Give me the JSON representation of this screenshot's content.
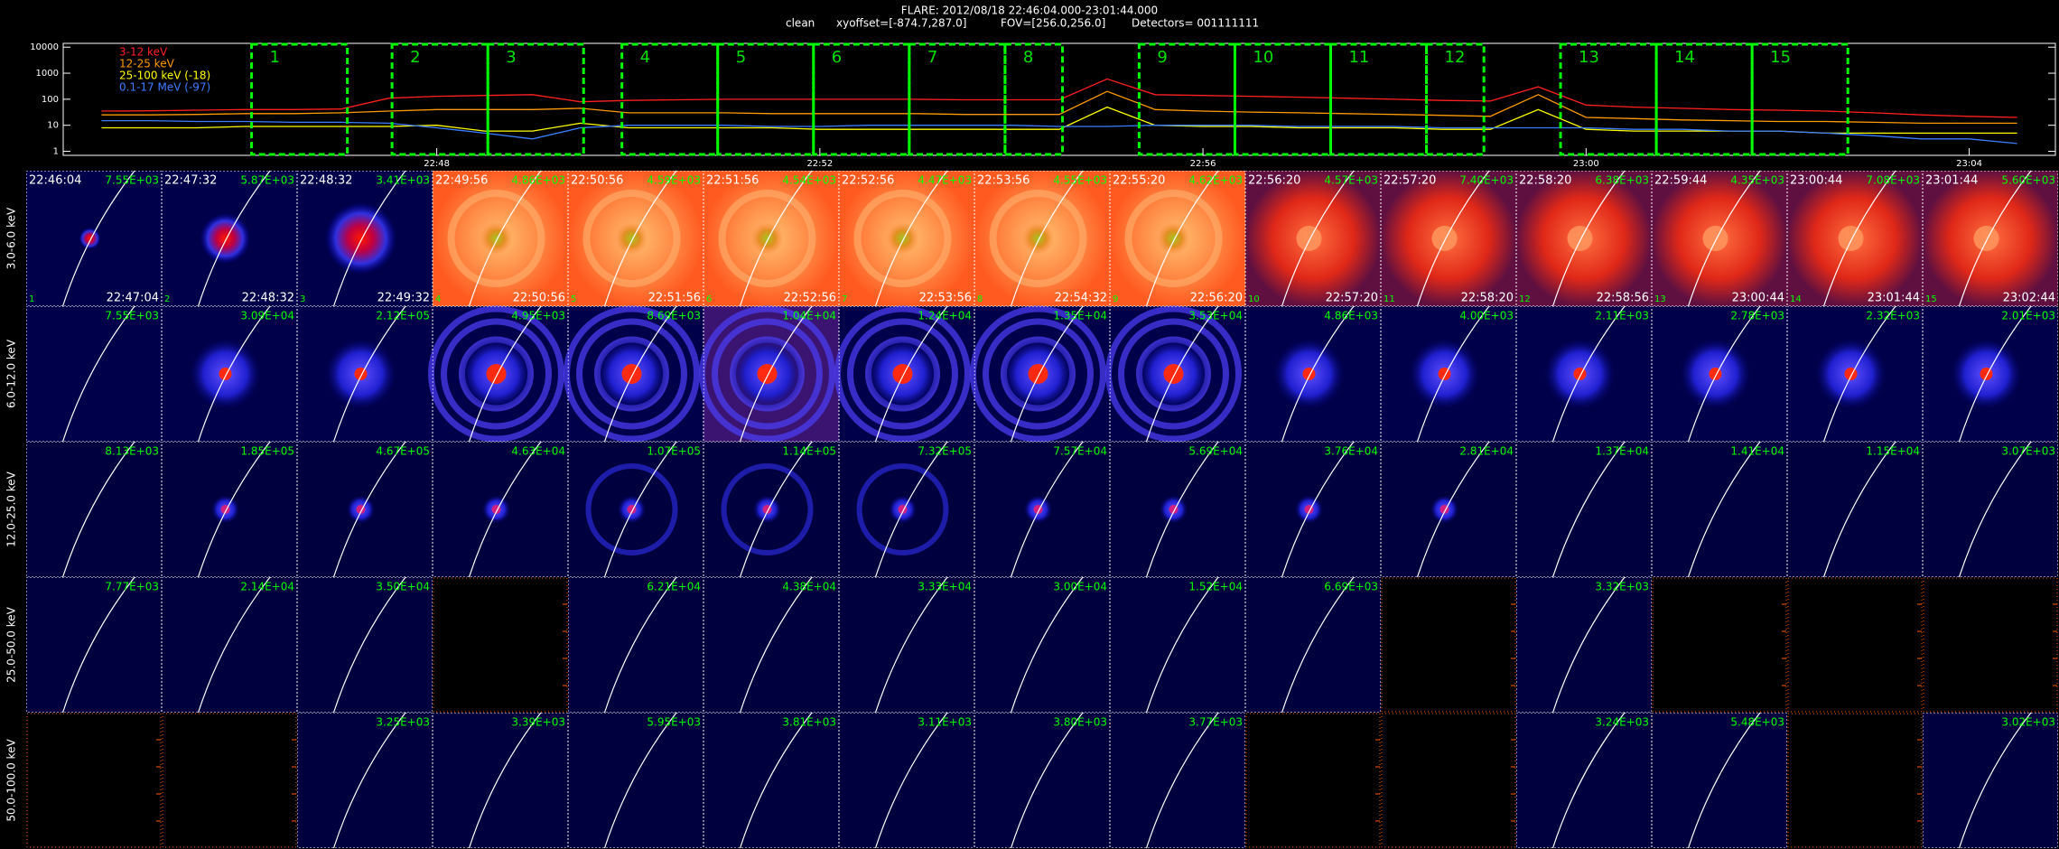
{
  "header": {
    "title": "FLARE: 2012/08/18 22:46:04.000-23:01:44.000",
    "method": "clean",
    "xyoffset": "xyoffset=[-874.7,287.0]",
    "fov": "FOV=[256.0,256.0]",
    "detectors": "Detectors= 001111111"
  },
  "lightcurve": {
    "log_y": true,
    "ylim": [
      0.7,
      14000
    ],
    "yticks": [
      1,
      10,
      100,
      1000,
      10000
    ],
    "xlim": [
      1364.1,
      1384.9
    ],
    "xticks": [
      {
        "value": 1368,
        "label": "22:48"
      },
      {
        "value": 1372,
        "label": "22:52"
      },
      {
        "value": 1376,
        "label": "22:56"
      },
      {
        "value": 1380,
        "label": "23:00"
      },
      {
        "value": 1384,
        "label": "23:04"
      }
    ],
    "x": [
      1364.5,
      1365,
      1365.5,
      1366,
      1366.5,
      1367,
      1367.5,
      1368,
      1368.5,
      1369,
      1369.5,
      1370,
      1370.5,
      1371,
      1371.5,
      1372,
      1372.5,
      1373,
      1373.5,
      1374,
      1374.5,
      1375,
      1375.5,
      1376,
      1376.5,
      1377,
      1377.5,
      1378,
      1378.5,
      1379,
      1379.5,
      1380,
      1380.5,
      1381,
      1381.5,
      1382,
      1382.5,
      1383,
      1383.5,
      1384,
      1384.5
    ],
    "series": [
      {
        "name": "3-12 keV",
        "color": "#ff2020",
        "values": [
          35,
          36,
          38,
          40,
          40,
          42,
          110,
          130,
          140,
          150,
          80,
          90,
          95,
          100,
          100,
          100,
          100,
          100,
          95,
          95,
          95,
          600,
          150,
          140,
          130,
          120,
          110,
          100,
          90,
          85,
          300,
          60,
          50,
          45,
          40,
          38,
          35,
          30,
          25,
          22,
          20
        ]
      },
      {
        "name": "12-25 keV",
        "color": "#ff9a00",
        "values": [
          25,
          25,
          26,
          28,
          28,
          30,
          35,
          40,
          40,
          40,
          45,
          30,
          30,
          30,
          28,
          28,
          28,
          28,
          26,
          26,
          26,
          200,
          40,
          35,
          32,
          30,
          28,
          26,
          24,
          22,
          150,
          20,
          18,
          16,
          15,
          14,
          14,
          13,
          12,
          12,
          12
        ]
      },
      {
        "name": "25-100 keV (-18)",
        "color": "#ffff00",
        "values": [
          8,
          8,
          8,
          9,
          9,
          9,
          9,
          10,
          6,
          6,
          12,
          8,
          8,
          8,
          8,
          7,
          7,
          7,
          7,
          7,
          7,
          50,
          10,
          9,
          9,
          8,
          8,
          8,
          7,
          7,
          40,
          7,
          6,
          6,
          6,
          6,
          5,
          5,
          5,
          5,
          5
        ]
      },
      {
        "name": "0.1-17 MeV (-97)",
        "color": "#3a7dff",
        "values": [
          15,
          15,
          14,
          14,
          13,
          13,
          12,
          8,
          5,
          3,
          8,
          10,
          10,
          10,
          9,
          9,
          10,
          10,
          10,
          10,
          9,
          9,
          10,
          10,
          10,
          9,
          9,
          9,
          8,
          8,
          8,
          8,
          7,
          7,
          6,
          6,
          5,
          4,
          3,
          3,
          2
        ]
      }
    ]
  },
  "grid": {
    "columns": [
      {
        "interval": "1",
        "start": "22:46:04",
        "end": "22:47:04"
      },
      {
        "interval": "2",
        "start": "22:47:32",
        "end": "22:48:32"
      },
      {
        "interval": "3",
        "start": "22:48:32",
        "end": "22:49:32"
      },
      {
        "interval": "4",
        "start": "22:49:56",
        "end": "22:50:56"
      },
      {
        "interval": "5",
        "start": "22:50:56",
        "end": "22:51:56"
      },
      {
        "interval": "6",
        "start": "22:51:56",
        "end": "22:52:56"
      },
      {
        "interval": "7",
        "start": "22:52:56",
        "end": "22:53:56"
      },
      {
        "interval": "8",
        "start": "22:53:56",
        "end": "22:54:32"
      },
      {
        "interval": "9",
        "start": "22:55:20",
        "end": "22:56:20"
      },
      {
        "interval": "10",
        "start": "22:56:20",
        "end": "22:57:20"
      },
      {
        "interval": "11",
        "start": "22:57:20",
        "end": "22:58:20"
      },
      {
        "interval": "12",
        "start": "22:58:20",
        "end": "22:58:56"
      },
      {
        "interval": "13",
        "start": "22:59:44",
        "end": "23:00:44"
      },
      {
        "interval": "14",
        "start": "23:00:44",
        "end": "23:01:44"
      },
      {
        "interval": "15",
        "start": "23:01:44",
        "end": "23:02:44"
      }
    ],
    "rows": [
      {
        "label": "3.0-6.0 keV",
        "max": [
          "7.55E+03",
          "5.87E+03",
          "3.41E+03",
          "4.86E+03",
          "4.59E+03",
          "4.54E+03",
          "4.47E+03",
          "4.55E+03",
          "4.62E+03",
          "4.57E+03",
          "7.40E+03",
          "6.38E+03",
          "4.35E+03",
          "7.08E+03",
          "5.60E+03"
        ]
      },
      {
        "label": "6.0-12.0 keV",
        "max": [
          "7.55E+03",
          "3.09E+04",
          "2.12E+05",
          "4.95E+03",
          "8.69E+03",
          "1.04E+04",
          "1.24E+04",
          "1.35E+04",
          "3.53E+04",
          "4.86E+03",
          "4.00E+03",
          "2.11E+03",
          "2.78E+03",
          "2.32E+03",
          "2.01E+03"
        ]
      },
      {
        "label": "12.0-25.0 keV",
        "max": [
          "8.13E+03",
          "1.85E+05",
          "4.67E+05",
          "4.63E+04",
          "1.07E+05",
          "1.14E+05",
          "7.32E+05",
          "7.57E+04",
          "5.69E+04",
          "3.76E+04",
          "2.81E+04",
          "1.37E+04",
          "1.41E+04",
          "1.15E+04",
          "3.07E+03"
        ]
      },
      {
        "label": "25.0-50.0 keV",
        "max": [
          "7.77E+03",
          "2.14E+04",
          "3.50E+04",
          null,
          "6.21E+04",
          "4.38E+04",
          "3.33E+04",
          "3.00E+04",
          "1.52E+04",
          "6.69E+03",
          null,
          "3.32E+03",
          null,
          null,
          null
        ]
      },
      {
        "label": "50.0-100.0 keV",
        "max": [
          null,
          null,
          "3.25E+03",
          "3.39E+03",
          "5.95E+03",
          "3.81E+03",
          "3.11E+03",
          "3.80E+03",
          "3.77E+03",
          null,
          null,
          "3.24E+03",
          "5.48E+03",
          null,
          "3.02E+03"
        ]
      }
    ]
  }
}
